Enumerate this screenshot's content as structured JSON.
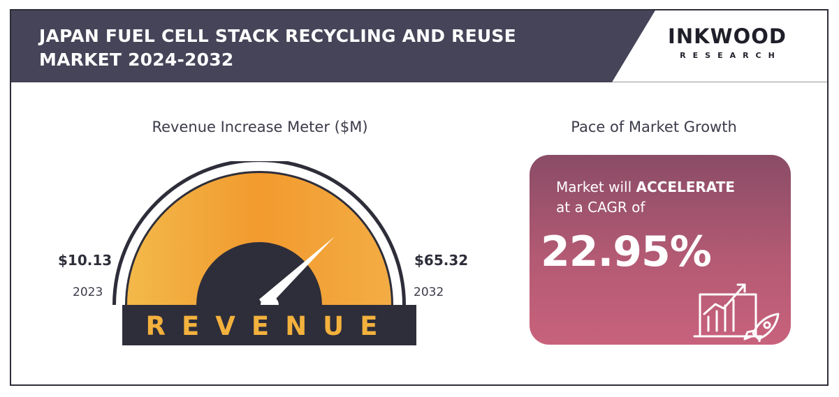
{
  "header": {
    "title_line1": "JAPAN FUEL CELL STACK RECYCLING AND REUSE",
    "title_line2": "MARKET 2024-2032",
    "logo_main": "INKWOOD",
    "logo_sub": "RESEARCH",
    "bar_color": "#454458"
  },
  "meter": {
    "title": "Revenue Increase Meter ($M)",
    "start_value": "$10.13",
    "start_year": "2023",
    "end_value": "$65.32",
    "end_year": "2032",
    "base_label": "REVENUE",
    "gauge_color_outer": "#f29a2e",
    "gauge_color_inner": "#f3b94a",
    "base_text_color": "#f3b13d"
  },
  "pace": {
    "title": "Pace of Market Growth",
    "line1_prefix": "Market will ",
    "line1_emphasis": "ACCELERATE",
    "line2": "at a CAGR of",
    "cagr": "22.95%",
    "icon": "growth-chart-rocket-icon"
  }
}
